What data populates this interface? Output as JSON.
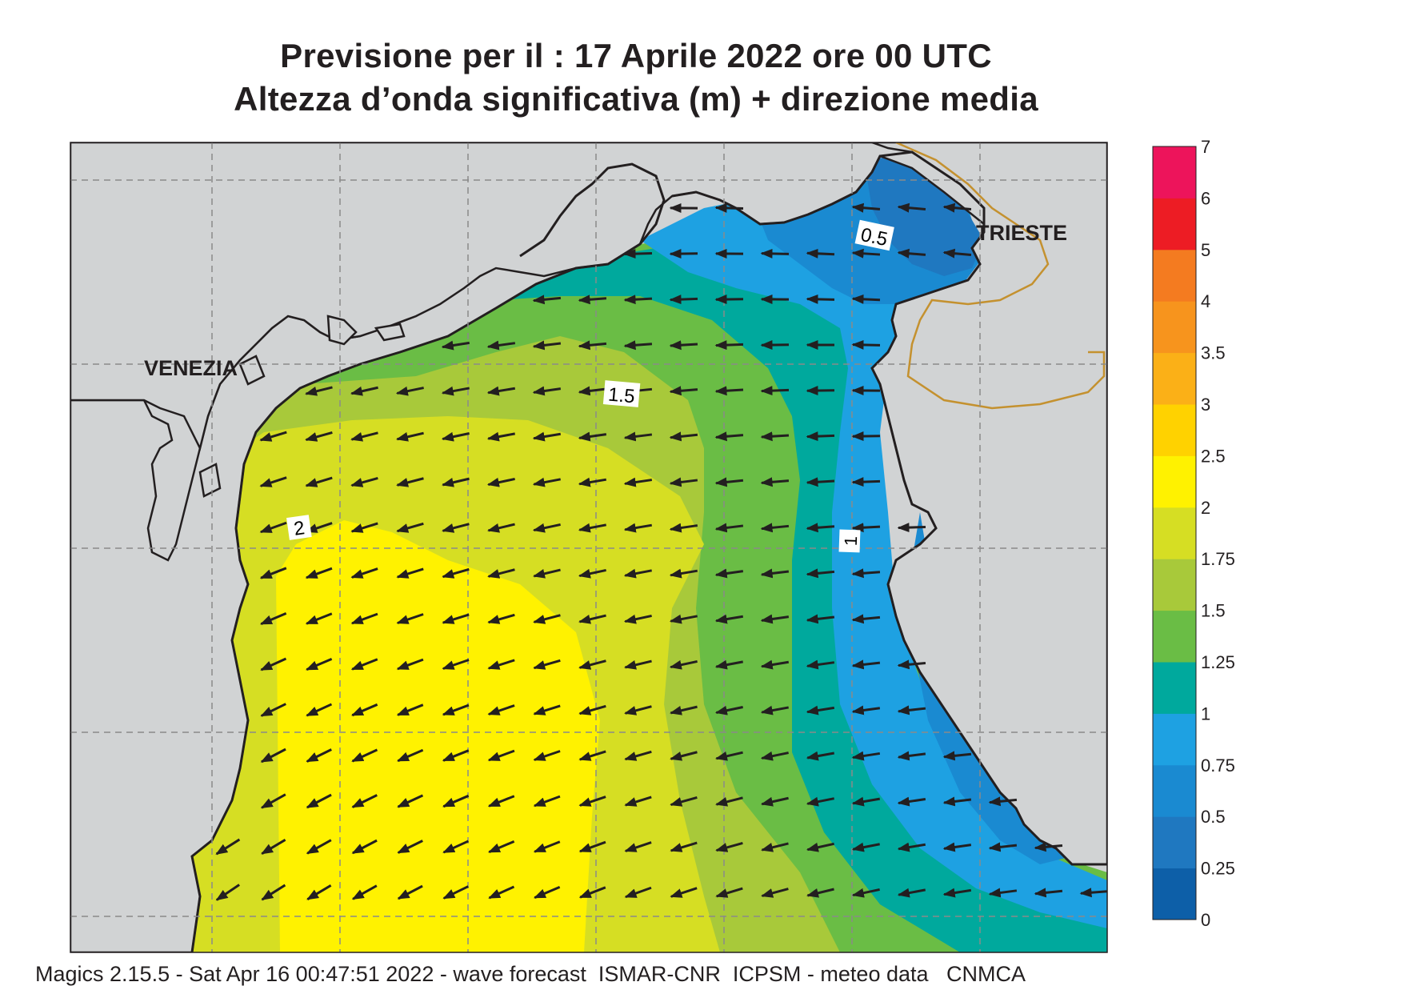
{
  "title": {
    "line1": "Previsione per il  :  17   Aprile  2022   ore 00 UTC",
    "line2": "Altezza d’onda significativa (m) + direzione media"
  },
  "map": {
    "places": [
      {
        "name": "VENEZIA"
      },
      {
        "name": "TRIESTE"
      }
    ],
    "contour_labels": [
      "0.5",
      "1.5",
      "1",
      "2"
    ],
    "arrow_direction": "south-west",
    "colors": {
      "land": "#d1d3d4",
      "coastline": "#231f20",
      "border": "#c4912f",
      "grid": "#8a8a8a"
    }
  },
  "legend": {
    "breaks": [
      "0",
      "0.25",
      "0.5",
      "0.75",
      "1",
      "1.25",
      "1.5",
      "1.75",
      "2",
      "2.5",
      "3",
      "3.5",
      "4",
      "5",
      "6",
      "7"
    ],
    "colors": [
      "#0d5fa8",
      "#1f78c0",
      "#1a8ad1",
      "#1ea1e2",
      "#00a99d",
      "#6abd45",
      "#a8c93a",
      "#d6de23",
      "#fff200",
      "#ffd200",
      "#fbb017",
      "#f7941d",
      "#f47b20",
      "#ed1c24",
      "#ed145b"
    ]
  },
  "footer": "Magics 2.15.5 - Sat Apr 16 00:47:51 2022 - wave forecast  ISMAR-CNR  ICPSM - meteo data   CNMCA"
}
